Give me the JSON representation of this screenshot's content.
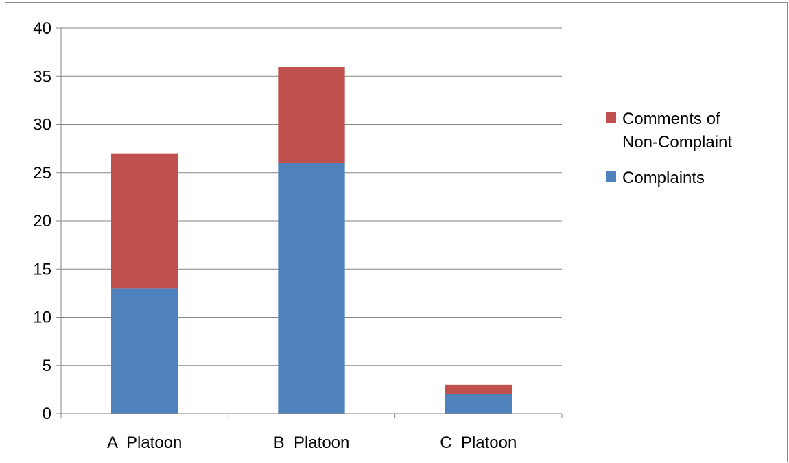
{
  "chart_data": {
    "type": "bar",
    "stacked": true,
    "title": "",
    "xlabel": "",
    "ylabel": "",
    "categories": [
      "A  Platoon",
      "B  Platoon",
      "C  Platoon"
    ],
    "series": [
      {
        "name": "Complaints",
        "values": [
          13,
          26,
          2
        ],
        "color": "#4f81bd"
      },
      {
        "name": "Comments of Non-Complaint",
        "values": [
          14,
          10,
          1
        ],
        "color": "#c0504d"
      }
    ],
    "ylim": [
      0,
      40
    ],
    "yticks": [
      0,
      5,
      10,
      15,
      20,
      25,
      30,
      35,
      40
    ],
    "grid": true,
    "legend": {
      "position": "right",
      "entries": [
        {
          "lines": [
            "Comments of",
            "Non-Complaint"
          ],
          "color": "#c0504d"
        },
        {
          "lines": [
            "Complaints"
          ],
          "color": "#4f81bd"
        }
      ]
    }
  }
}
